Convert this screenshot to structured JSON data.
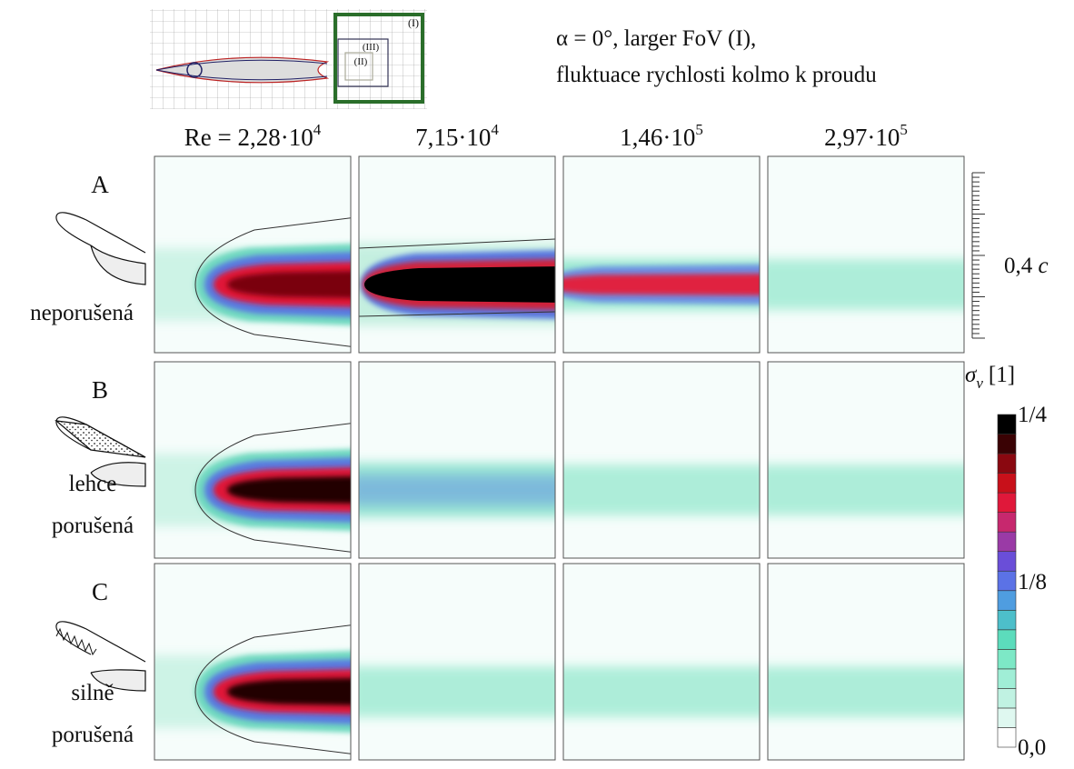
{
  "inset": {
    "labels": [
      "(I)",
      "(III)",
      "(II)"
    ]
  },
  "header": {
    "line1": "α = 0°, larger FoV (I),",
    "line2": "fluktuace rychlosti kolmo k proudu"
  },
  "columns": [
    {
      "base": "Re = 2,28·10",
      "exp": "4"
    },
    {
      "base": "7,15·10",
      "exp": "4"
    },
    {
      "base": "1,46·10",
      "exp": "5"
    },
    {
      "base": "2,97·10",
      "exp": "5"
    }
  ],
  "rows": [
    {
      "letter": "A",
      "label": [
        "neporušená"
      ]
    },
    {
      "letter": "B",
      "label": [
        "lehce",
        "porušená"
      ]
    },
    {
      "letter": "C",
      "label": [
        "silně",
        "porušená"
      ]
    }
  ],
  "scale": {
    "label": "0,4",
    "unit": "c"
  },
  "colorbar": {
    "symbol": "σ",
    "sub": "v",
    "unit": "[1]",
    "top": "1/4",
    "mid": "1/8",
    "bottom": "0,0"
  }
}
